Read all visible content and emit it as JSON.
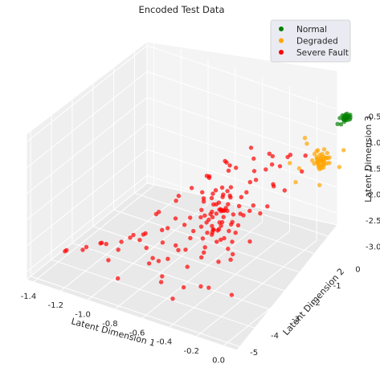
{
  "chart_data": {
    "type": "scatter",
    "projection": "3d",
    "title": "Encoded Test Data",
    "xlabel": "Latent Dimension 1",
    "ylabel": "Latent Dimension 2",
    "zlabel": "Latent Dimension 3",
    "xlim": [
      -1.45,
      0.1
    ],
    "ylim": [
      -5.2,
      0.6
    ],
    "zlim": [
      -3.15,
      -0.35
    ],
    "x_ticks": [
      "-1.4",
      "-1.2",
      "-1.0",
      "-0.8",
      "-0.6",
      "-0.4",
      "-0.2",
      "0.0"
    ],
    "y_ticks": [
      "-5",
      "-4",
      "-3",
      "-2",
      "-1",
      "0"
    ],
    "z_ticks": [
      "-3.0",
      "-2.5",
      "-2.0",
      "-1.5",
      "-1.0",
      "-0.5"
    ],
    "grid": true,
    "legend_position": "top-right",
    "series": [
      {
        "name": "Normal",
        "color": "#008000",
        "points": [
          [
            0.08,
            0.2,
            -0.42
          ],
          [
            0.06,
            0.3,
            -0.44
          ],
          [
            0.09,
            0.1,
            -0.4
          ],
          [
            0.07,
            0.25,
            -0.46
          ],
          [
            0.05,
            0.35,
            -0.43
          ],
          [
            0.08,
            0.15,
            -0.45
          ],
          [
            0.06,
            0.22,
            -0.41
          ],
          [
            0.09,
            0.32,
            -0.44
          ],
          [
            0.07,
            0.12,
            -0.43
          ],
          [
            0.05,
            0.28,
            -0.47
          ],
          [
            0.08,
            0.38,
            -0.42
          ],
          [
            0.06,
            0.18,
            -0.46
          ],
          [
            0.09,
            0.24,
            -0.39
          ],
          [
            0.07,
            0.34,
            -0.45
          ],
          [
            0.04,
            0.14,
            -0.44
          ],
          [
            0.08,
            0.26,
            -0.48
          ],
          [
            0.05,
            0.2,
            -0.4
          ],
          [
            0.09,
            0.3,
            -0.47
          ],
          [
            0.06,
            0.36,
            -0.41
          ],
          [
            0.07,
            0.16,
            -0.49
          ],
          [
            0.03,
            0.1,
            -0.55
          ],
          [
            0.04,
            0.2,
            -0.58
          ]
        ]
      },
      {
        "name": "Degraded",
        "color": "#FFA500",
        "points": [
          [
            0.02,
            -0.5,
            -1.0
          ],
          [
            0.0,
            -0.6,
            -1.05
          ],
          [
            0.03,
            -0.4,
            -0.95
          ],
          [
            -0.02,
            -0.7,
            -1.1
          ],
          [
            0.01,
            -0.55,
            -1.08
          ],
          [
            0.04,
            -0.45,
            -1.02
          ],
          [
            -0.01,
            -0.65,
            -0.98
          ],
          [
            0.02,
            -0.75,
            -1.12
          ],
          [
            0.0,
            -0.35,
            -0.92
          ],
          [
            0.03,
            -0.8,
            -1.06
          ],
          [
            -0.03,
            -0.5,
            -1.15
          ],
          [
            0.05,
            -0.6,
            -0.97
          ],
          [
            0.01,
            -0.42,
            -1.13
          ],
          [
            -0.02,
            -0.58,
            -0.9
          ],
          [
            0.04,
            -0.68,
            -1.09
          ],
          [
            0.0,
            -0.48,
            -1.04
          ],
          [
            0.02,
            -0.62,
            -1.18
          ],
          [
            -0.01,
            -0.38,
            -1.01
          ],
          [
            0.03,
            -0.72,
            -0.94
          ],
          [
            0.01,
            -0.52,
            -1.16
          ],
          [
            -0.04,
            -0.66,
            -1.07
          ],
          [
            0.05,
            -0.44,
            -1.11
          ],
          [
            0.0,
            -0.56,
            -0.96
          ],
          [
            0.02,
            -0.78,
            -1.03
          ],
          [
            -0.02,
            -0.4,
            -1.14
          ],
          [
            0.04,
            -0.54,
            -0.99
          ],
          [
            0.01,
            -0.64,
            -1.2
          ],
          [
            -0.03,
            -0.46,
            -0.93
          ],
          [
            0.03,
            -0.58,
            -1.17
          ],
          [
            0.0,
            -0.7,
            -1.0
          ],
          [
            0.02,
            -0.52,
            -1.06
          ],
          [
            -0.01,
            -0.6,
            -1.1
          ],
          [
            0.04,
            -0.36,
            -1.04
          ],
          [
            0.01,
            -0.74,
            -0.97
          ],
          [
            -0.02,
            -0.5,
            -1.19
          ],
          [
            0.03,
            -0.66,
            -1.02
          ],
          [
            0.0,
            -0.42,
            -1.13
          ],
          [
            0.05,
            -0.56,
            -1.08
          ],
          [
            -0.03,
            -0.62,
            -0.95
          ],
          [
            0.02,
            -0.48,
            -1.15
          ],
          [
            0.15,
            -0.6,
            -1.05
          ],
          [
            -0.1,
            -0.9,
            -1.2
          ],
          [
            -0.15,
            -0.3,
            -0.85
          ],
          [
            0.08,
            -1.1,
            -1.3
          ],
          [
            -0.2,
            -0.7,
            -1.25
          ],
          [
            -0.12,
            -0.4,
            -0.9
          ],
          [
            -0.08,
            -1.2,
            -1.35
          ],
          [
            0.12,
            -0.2,
            -0.88
          ]
        ]
      },
      {
        "name": "Severe Fault",
        "color": "#FF0000",
        "points": [
          [
            -0.5,
            -2.0,
            -2.0
          ],
          [
            -0.45,
            -2.2,
            -1.9
          ],
          [
            -0.55,
            -1.8,
            -2.1
          ],
          [
            -0.4,
            -2.4,
            -1.8
          ],
          [
            -0.6,
            -1.9,
            -2.2
          ],
          [
            -0.48,
            -2.1,
            -1.7
          ],
          [
            -0.52,
            -2.3,
            -2.3
          ],
          [
            -0.42,
            -1.7,
            -1.95
          ],
          [
            -0.58,
            -2.5,
            -2.05
          ],
          [
            -0.46,
            -2.0,
            -1.6
          ],
          [
            -0.54,
            -2.2,
            -2.4
          ],
          [
            -0.38,
            -1.9,
            -2.0
          ],
          [
            -0.62,
            -2.1,
            -1.85
          ],
          [
            -0.44,
            -2.6,
            -2.15
          ],
          [
            -0.56,
            -1.6,
            -1.75
          ],
          [
            -0.5,
            -2.4,
            -2.25
          ],
          [
            -0.4,
            -2.0,
            -2.35
          ],
          [
            -0.6,
            -2.3,
            -1.65
          ],
          [
            -0.48,
            -1.8,
            -2.45
          ],
          [
            -0.52,
            -2.7,
            -1.9
          ],
          [
            -0.35,
            -2.2,
            -2.1
          ],
          [
            -0.65,
            -1.9,
            -2.0
          ],
          [
            -0.43,
            -2.5,
            -1.8
          ],
          [
            -0.57,
            -2.0,
            -2.2
          ],
          [
            -0.47,
            -1.7,
            -2.3
          ],
          [
            -0.53,
            -2.3,
            -1.7
          ],
          [
            -0.41,
            -2.1,
            -2.5
          ],
          [
            -0.59,
            -2.4,
            -1.95
          ],
          [
            -0.45,
            -1.9,
            -1.55
          ],
          [
            -0.55,
            -2.6,
            -2.4
          ],
          [
            -0.3,
            -1.8,
            -1.8
          ],
          [
            -0.7,
            -2.5,
            -2.3
          ],
          [
            -0.36,
            -2.4,
            -2.6
          ],
          [
            -0.64,
            -1.7,
            -1.6
          ],
          [
            -0.32,
            -2.0,
            -1.5
          ],
          [
            -0.68,
            -2.2,
            -2.5
          ],
          [
            -0.28,
            -1.6,
            -2.0
          ],
          [
            -0.72,
            -2.8,
            -2.1
          ],
          [
            -0.25,
            -2.3,
            -1.7
          ],
          [
            -0.75,
            -1.9,
            -2.4
          ],
          [
            -0.5,
            -3.0,
            -2.0
          ],
          [
            -0.45,
            -1.4,
            -1.9
          ],
          [
            -0.55,
            -3.2,
            -2.2
          ],
          [
            -0.4,
            -1.3,
            -1.6
          ],
          [
            -0.6,
            -3.1,
            -2.5
          ],
          [
            -0.2,
            -1.5,
            -1.4
          ],
          [
            -0.8,
            -2.9,
            -2.6
          ],
          [
            -0.3,
            -1.2,
            -1.3
          ],
          [
            -0.7,
            -3.3,
            -2.7
          ],
          [
            -0.35,
            -2.6,
            -1.4
          ],
          [
            -0.65,
            -1.5,
            -2.6
          ],
          [
            -0.25,
            -2.0,
            -1.2
          ],
          [
            -0.78,
            -2.4,
            -2.8
          ],
          [
            -0.42,
            -3.4,
            -2.3
          ],
          [
            -0.58,
            -1.1,
            -1.5
          ],
          [
            -0.15,
            -1.8,
            -1.3
          ],
          [
            -0.85,
            -2.6,
            -2.5
          ],
          [
            -0.22,
            -2.8,
            -1.6
          ],
          [
            -0.9,
            -2.0,
            -2.7
          ],
          [
            -0.18,
            -1.3,
            -1.1
          ],
          [
            -0.88,
            -3.2,
            -2.4
          ],
          [
            -0.12,
            -2.3,
            -1.5
          ],
          [
            -0.95,
            -2.7,
            -2.9
          ],
          [
            -0.1,
            -1.6,
            -1.4
          ],
          [
            -1.0,
            -3.0,
            -2.6
          ],
          [
            -0.38,
            -3.6,
            -2.1
          ],
          [
            -0.62,
            -0.9,
            -1.7
          ],
          [
            -0.28,
            -3.5,
            -1.9
          ],
          [
            -0.72,
            -1.0,
            -2.2
          ],
          [
            -0.48,
            -3.8,
            -2.5
          ],
          [
            -1.05,
            -3.4,
            -2.8
          ],
          [
            -1.1,
            -2.5,
            -2.9
          ],
          [
            -1.15,
            -3.6,
            -2.7
          ],
          [
            -1.2,
            -3.0,
            -2.95
          ],
          [
            -1.25,
            -3.8,
            -2.85
          ],
          [
            -1.3,
            -3.3,
            -3.0
          ],
          [
            -1.35,
            -4.0,
            -2.9
          ],
          [
            -1.4,
            -3.6,
            -3.05
          ],
          [
            -1.0,
            -4.2,
            -2.7
          ],
          [
            -0.95,
            -3.9,
            -2.4
          ],
          [
            -0.8,
            -4.0,
            -2.2
          ],
          [
            -0.7,
            -4.2,
            -2.5
          ],
          [
            -0.6,
            -4.4,
            -2.3
          ],
          [
            -0.5,
            -4.1,
            -2.1
          ],
          [
            -0.4,
            -4.5,
            -2.6
          ],
          [
            -0.3,
            -4.3,
            -2.0
          ],
          [
            -0.2,
            -4.6,
            -2.4
          ],
          [
            -0.1,
            -4.2,
            -1.9
          ],
          [
            0.0,
            -4.8,
            -2.3
          ],
          [
            -0.15,
            -4.0,
            -1.8
          ],
          [
            -0.05,
            -3.6,
            -1.7
          ],
          [
            -0.25,
            -3.8,
            -2.2
          ],
          [
            -0.35,
            -4.0,
            -2.7
          ],
          [
            -0.45,
            -4.7,
            -2.8
          ],
          [
            -0.55,
            -4.6,
            -2.6
          ],
          [
            -0.65,
            -3.9,
            -2.8
          ],
          [
            -0.75,
            -3.7,
            -2.6
          ],
          [
            -0.85,
            -3.5,
            -2.3
          ],
          [
            -0.9,
            -4.4,
            -2.9
          ],
          [
            -1.08,
            -4.0,
            -2.5
          ],
          [
            -0.2,
            -0.8,
            -1.1
          ],
          [
            -0.15,
            -1.0,
            -0.95
          ],
          [
            -0.3,
            -0.9,
            -1.3
          ],
          [
            -0.25,
            -1.2,
            -1.0
          ],
          [
            -0.35,
            -0.7,
            -1.2
          ],
          [
            -0.05,
            -1.1,
            -1.15
          ],
          [
            -0.1,
            -0.6,
            -1.05
          ],
          [
            -0.4,
            -1.1,
            -1.45
          ],
          [
            -0.45,
            -0.8,
            -1.35
          ],
          [
            -0.5,
            -0.6,
            -1.25
          ],
          [
            -0.55,
            -1.0,
            -1.55
          ],
          [
            -0.6,
            -1.2,
            -1.4
          ],
          [
            -0.65,
            -0.8,
            -1.6
          ],
          [
            -0.7,
            -1.3,
            -1.75
          ],
          [
            -0.75,
            -1.1,
            -1.85
          ],
          [
            -0.8,
            -1.5,
            -2.0
          ],
          [
            -0.85,
            -1.8,
            -2.1
          ],
          [
            -0.9,
            -1.6,
            -2.3
          ],
          [
            -0.95,
            -2.1,
            -2.4
          ],
          [
            -1.0,
            -1.9,
            -2.55
          ],
          [
            -0.48,
            -2.05,
            -1.98
          ],
          [
            -0.52,
            -1.95,
            -2.02
          ],
          [
            -0.46,
            -2.25,
            -2.12
          ],
          [
            -0.54,
            -2.15,
            -1.88
          ],
          [
            -0.44,
            -1.85,
            -2.08
          ],
          [
            -0.56,
            -2.35,
            -2.18
          ],
          [
            -0.42,
            -2.45,
            -1.92
          ],
          [
            -0.58,
            -1.75,
            -2.22
          ],
          [
            -0.4,
            -2.55,
            -2.28
          ],
          [
            -0.6,
            -1.65,
            -1.82
          ],
          [
            -0.5,
            -2.15,
            -2.32
          ],
          [
            -0.47,
            -2.35,
            -1.72
          ],
          [
            -0.53,
            -1.85,
            -2.38
          ],
          [
            -0.43,
            -2.05,
            -1.68
          ],
          [
            -0.57,
            -2.25,
            -2.42
          ],
          [
            -0.45,
            -2.45,
            -2.05
          ],
          [
            -0.55,
            -1.95,
            -1.95
          ],
          [
            -0.41,
            -2.15,
            -2.15
          ],
          [
            -0.59,
            -2.05,
            -2.25
          ],
          [
            -0.49,
            -2.55,
            -1.85
          ],
          [
            -0.51,
            -1.75,
            -2.05
          ],
          [
            -0.44,
            -2.65,
            -2.35
          ],
          [
            -0.56,
            -1.55,
            -1.9
          ],
          [
            -0.46,
            -2.75,
            -2.2
          ],
          [
            -0.54,
            -1.45,
            -2.1
          ]
        ]
      }
    ]
  }
}
